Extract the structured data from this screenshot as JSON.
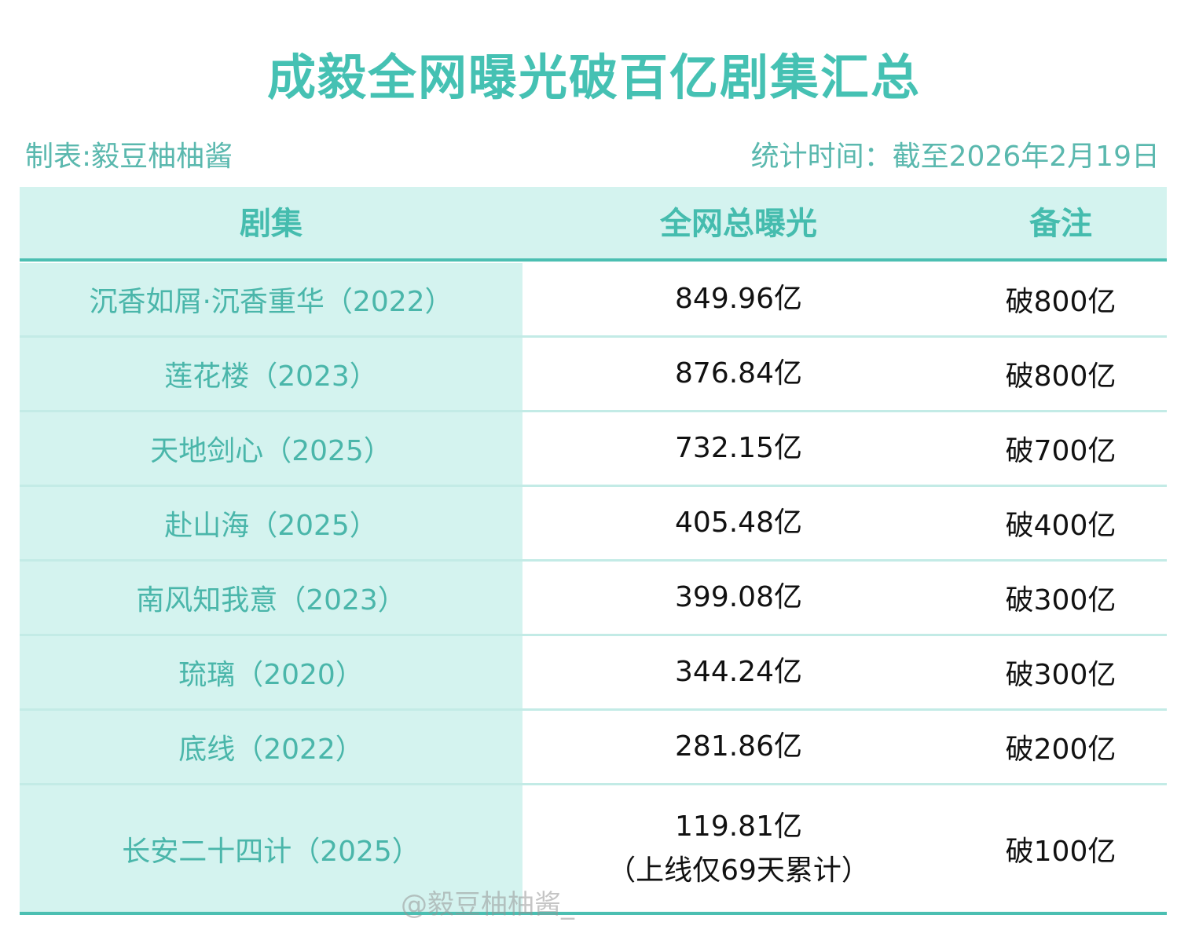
{
  "header": {
    "title": "成毅全网曝光破百亿剧集汇总",
    "maker": "制表:毅豆柚柚酱",
    "stat_time": "统计时间：截至2026年2月19日"
  },
  "table": {
    "columns": [
      "剧集",
      "全网总曝光",
      "备注"
    ],
    "rows": [
      {
        "title": "沉香如屑·沉香重华（2022）",
        "exposure": "849.96亿",
        "note": "破800亿"
      },
      {
        "title": "莲花楼（2023）",
        "exposure": "876.84亿",
        "note": "破800亿"
      },
      {
        "title": "天地剑心（2025）",
        "exposure": "732.15亿",
        "note": "破700亿"
      },
      {
        "title": "赴山海（2025）",
        "exposure": "405.48亿",
        "note": "破400亿"
      },
      {
        "title": "南风知我意（2023）",
        "exposure": "399.08亿",
        "note": "破300亿"
      },
      {
        "title": "琉璃（2020）",
        "exposure": "344.24亿",
        "note": "破300亿"
      },
      {
        "title": "底线（2022）",
        "exposure": "281.86亿",
        "note": "破200亿"
      },
      {
        "title": "长安二十四计（2025）",
        "exposure": "119.81亿",
        "exposure_note": "（上线仅69天累计）",
        "note": "破100亿"
      }
    ]
  },
  "watermark": "@毅豆柚柚酱_"
}
